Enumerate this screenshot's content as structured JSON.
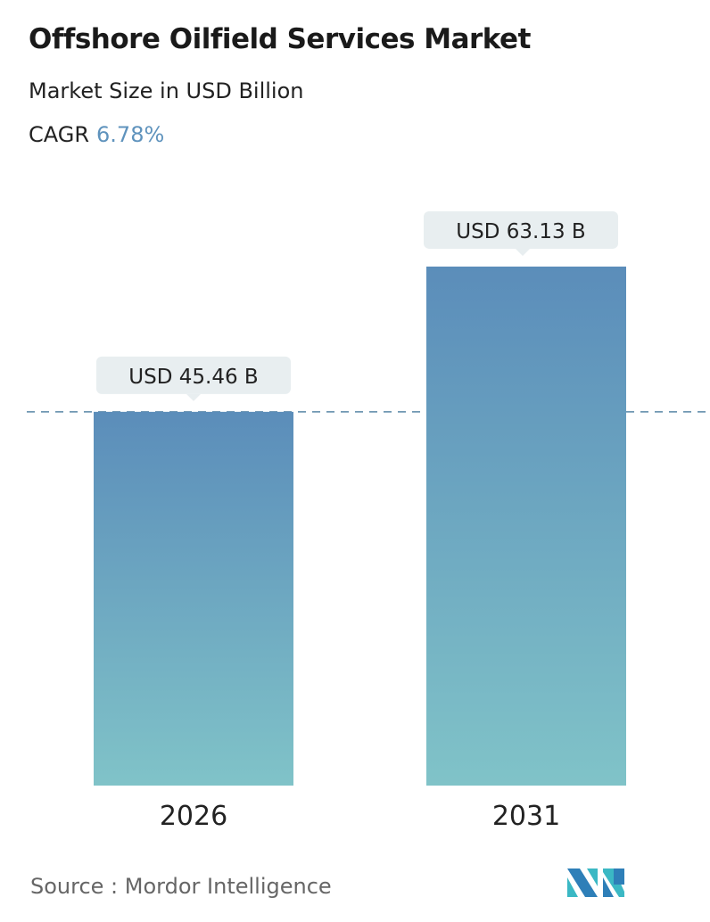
{
  "header": {
    "title": "Offshore Oilfield Services Market",
    "subtitle": "Market Size in USD Billion",
    "cagr_label": "CAGR",
    "cagr_value": "6.78%"
  },
  "chart_data": {
    "type": "bar",
    "categories": [
      "2026",
      "2031"
    ],
    "values": [
      45.46,
      63.13
    ],
    "data_labels": [
      "USD 45.46 B",
      "USD 63.13 B"
    ],
    "unit": "USD Billion",
    "reference_line": {
      "value": 45.46,
      "style": "dashed"
    },
    "grid": false,
    "colors": {
      "bar_top": "#5b8dba",
      "bar_bottom": "#80c3c8",
      "reference_line": "#5a87a8",
      "label_box": "#e8eef0"
    }
  },
  "footer": {
    "source": "Source :  Mordor Intelligence",
    "logo_text": "MI"
  }
}
